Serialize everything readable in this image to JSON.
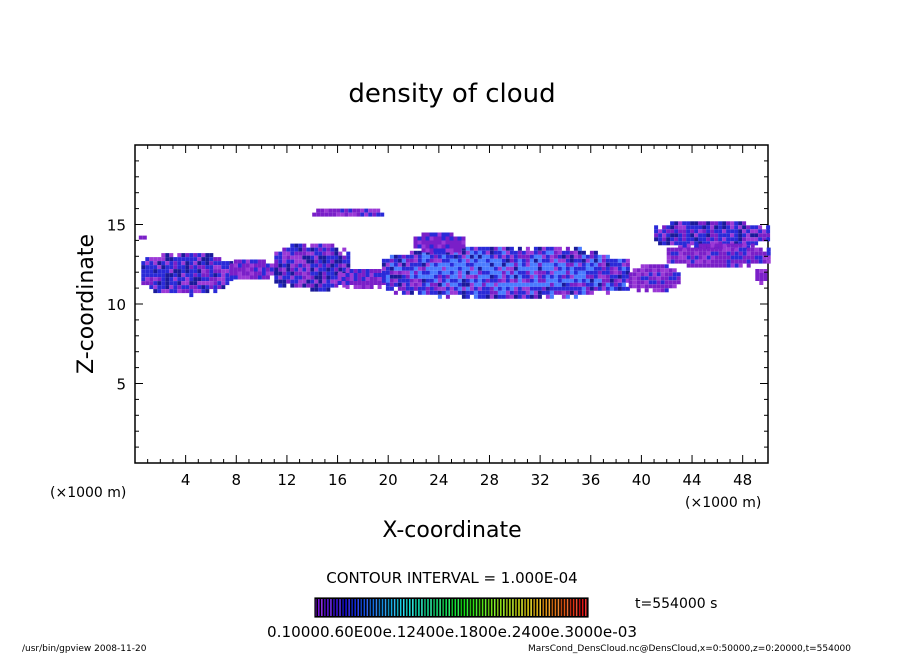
{
  "chart_data": {
    "type": "heatmap",
    "title": "density of cloud",
    "xlabel": "X-coordinate",
    "ylabel": "Z-coordinate",
    "x_unit": "(×1000 m)",
    "y_unit": "(×1000 m)",
    "xlim": [
      0,
      50
    ],
    "ylim": [
      0,
      20
    ],
    "x_ticks": [
      4,
      8,
      12,
      16,
      20,
      24,
      28,
      32,
      36,
      40,
      44,
      48
    ],
    "y_ticks": [
      5,
      10,
      15
    ],
    "contour_interval": "CONTOUR INTERVAL = 1.000E-04",
    "time_label": "t=554000 s",
    "colorbar_labels": "0.10000.60E00e.12400e.1800e.2400e.3000e-03",
    "colorbar_range": [
      0.0001,
      0.003
    ],
    "footer_left": "/usr/bin/gpview   2008-11-20",
    "footer_right": "MarsCond_DensCloud.nc@DensCloud,x=0:50000,z=0:20000,t=554000",
    "colors": {
      "purple": "#7a1fc8",
      "violet": "#9b39d6",
      "blue": "#2a2ad8",
      "bright_blue": "#4a7cff",
      "navy": "#1a1a9a"
    },
    "cloud_regions": [
      {
        "x": [
          0.5,
          7.5
        ],
        "z": [
          10.6,
          13.2
        ],
        "level": 2
      },
      {
        "x": [
          0.3,
          0.8
        ],
        "z": [
          14.0,
          14.3
        ],
        "level": 1
      },
      {
        "x": [
          7.5,
          11
        ],
        "z": [
          11.5,
          12.8
        ],
        "level": 1
      },
      {
        "x": [
          11,
          17
        ],
        "z": [
          10.8,
          13.8
        ],
        "level": 2
      },
      {
        "x": [
          14,
          19.5
        ],
        "z": [
          15.4,
          16.0
        ],
        "level": 1
      },
      {
        "x": [
          16,
          20
        ],
        "z": [
          11.0,
          12.2
        ],
        "level": 1
      },
      {
        "x": [
          19.5,
          39
        ],
        "z": [
          10.3,
          13.6
        ],
        "level": 3
      },
      {
        "x": [
          22,
          26
        ],
        "z": [
          13.2,
          14.5
        ],
        "level": 1
      },
      {
        "x": [
          39,
          43
        ],
        "z": [
          10.8,
          12.5
        ],
        "level": 1
      },
      {
        "x": [
          41,
          50
        ],
        "z": [
          13.5,
          15.2
        ],
        "level": 2
      },
      {
        "x": [
          42,
          50
        ],
        "z": [
          12.3,
          13.8
        ],
        "level": 1
      },
      {
        "x": [
          49,
          50
        ],
        "z": [
          11.3,
          12.2
        ],
        "level": 1
      }
    ]
  }
}
